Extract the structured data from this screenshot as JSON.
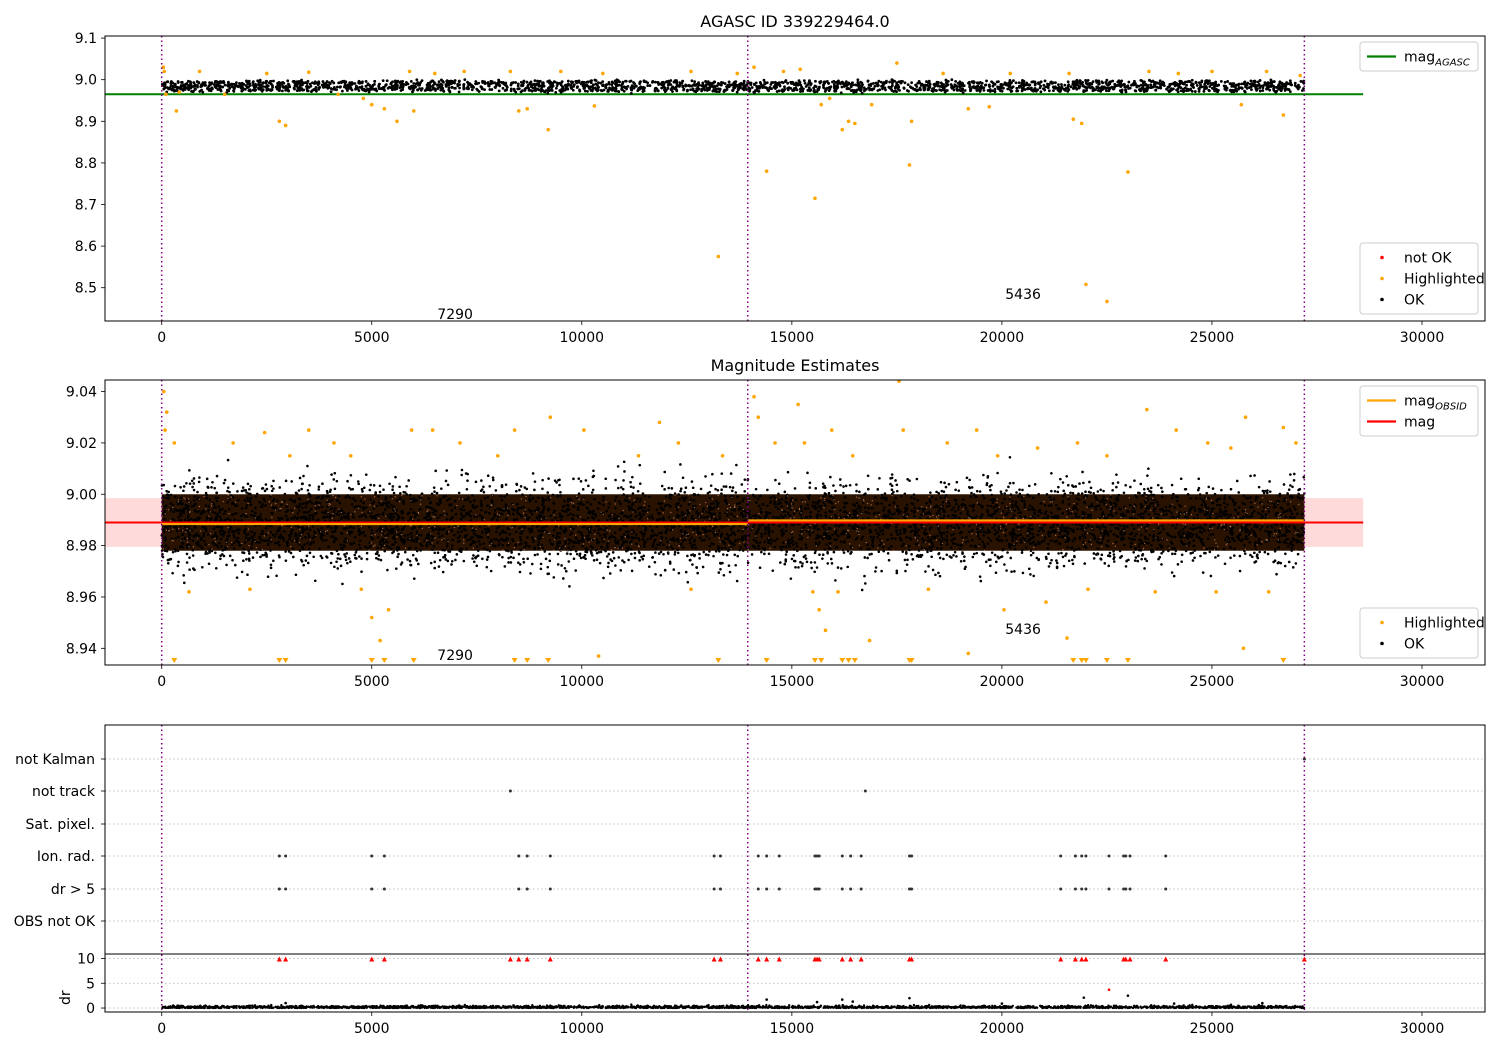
{
  "chart_data": [
    {
      "type": "scatter",
      "title": "AGASC ID 339229464.0",
      "xlim": [
        -1350,
        31500
      ],
      "ylim": [
        8.42,
        9.105
      ],
      "xticks": [
        0,
        5000,
        10000,
        15000,
        20000,
        25000,
        30000
      ],
      "yticks": [
        8.5,
        8.6,
        8.7,
        8.8,
        8.9,
        9.0,
        9.1
      ],
      "ytick_decimals": 1,
      "obs_boundaries": [
        0,
        13950,
        27200
      ],
      "obs_labels": [
        {
          "x": 6560,
          "y": 8.425,
          "text": "7290"
        },
        {
          "x": 20080,
          "y": 8.473,
          "text": "5436"
        }
      ],
      "reference_lines": [
        {
          "name": "mag_AGASC",
          "value": 8.965,
          "color": "#008000",
          "x_range": [
            -1350,
            28600
          ]
        }
      ],
      "ok_band": {
        "ymin": 8.972,
        "ymax": 8.997,
        "x_range": [
          0,
          27200
        ]
      },
      "highlighted": [
        {
          "x": 40,
          "y": 9.03
        },
        {
          "x": 60,
          "y": 9.02
        },
        {
          "x": 100,
          "y": 8.965
        },
        {
          "x": 350,
          "y": 8.925
        },
        {
          "x": 420,
          "y": 8.97
        },
        {
          "x": 900,
          "y": 9.02
        },
        {
          "x": 1500,
          "y": 8.965
        },
        {
          "x": 2500,
          "y": 9.015
        },
        {
          "x": 2800,
          "y": 8.9
        },
        {
          "x": 2950,
          "y": 8.89
        },
        {
          "x": 3500,
          "y": 9.018
        },
        {
          "x": 4200,
          "y": 8.965
        },
        {
          "x": 4800,
          "y": 8.955
        },
        {
          "x": 5000,
          "y": 8.94
        },
        {
          "x": 5300,
          "y": 8.93
        },
        {
          "x": 5600,
          "y": 8.9
        },
        {
          "x": 5900,
          "y": 9.02
        },
        {
          "x": 6000,
          "y": 8.925
        },
        {
          "x": 6500,
          "y": 9.015
        },
        {
          "x": 7200,
          "y": 9.02
        },
        {
          "x": 8300,
          "y": 9.02
        },
        {
          "x": 8500,
          "y": 8.925
        },
        {
          "x": 8700,
          "y": 8.93
        },
        {
          "x": 9200,
          "y": 8.88
        },
        {
          "x": 9500,
          "y": 9.02
        },
        {
          "x": 10300,
          "y": 8.937
        },
        {
          "x": 10500,
          "y": 9.015
        },
        {
          "x": 12600,
          "y": 9.02
        },
        {
          "x": 13250,
          "y": 8.575
        },
        {
          "x": 13700,
          "y": 9.015
        },
        {
          "x": 14100,
          "y": 9.03
        },
        {
          "x": 14400,
          "y": 8.78
        },
        {
          "x": 14800,
          "y": 9.02
        },
        {
          "x": 15200,
          "y": 9.025
        },
        {
          "x": 15550,
          "y": 8.715
        },
        {
          "x": 15700,
          "y": 8.94
        },
        {
          "x": 15900,
          "y": 8.955
        },
        {
          "x": 16200,
          "y": 8.88
        },
        {
          "x": 16350,
          "y": 8.9
        },
        {
          "x": 16500,
          "y": 8.895
        },
        {
          "x": 16900,
          "y": 8.94
        },
        {
          "x": 17500,
          "y": 9.04
        },
        {
          "x": 17800,
          "y": 8.795
        },
        {
          "x": 17850,
          "y": 8.9
        },
        {
          "x": 18600,
          "y": 9.015
        },
        {
          "x": 19200,
          "y": 8.93
        },
        {
          "x": 19700,
          "y": 8.935
        },
        {
          "x": 20200,
          "y": 9.015
        },
        {
          "x": 21600,
          "y": 9.015
        },
        {
          "x": 21700,
          "y": 8.905
        },
        {
          "x": 21900,
          "y": 8.895
        },
        {
          "x": 22000,
          "y": 8.508
        },
        {
          "x": 22500,
          "y": 8.467
        },
        {
          "x": 23000,
          "y": 8.778
        },
        {
          "x": 23500,
          "y": 9.02
        },
        {
          "x": 24200,
          "y": 9.015
        },
        {
          "x": 25000,
          "y": 9.02
        },
        {
          "x": 25700,
          "y": 8.94
        },
        {
          "x": 26300,
          "y": 9.02
        },
        {
          "x": 26700,
          "y": 8.915
        },
        {
          "x": 27100,
          "y": 9.01
        }
      ],
      "legends": [
        {
          "position": "top-right",
          "entries": [
            {
              "kind": "line",
              "color": "#008000",
              "text": "mag",
              "sub": "AGASC"
            }
          ]
        },
        {
          "position": "lower-right",
          "entries": [
            {
              "kind": "dot",
              "color": "#ff0000",
              "text": "not OK"
            },
            {
              "kind": "dot",
              "color": "#ffa500",
              "text": "Highlighted"
            },
            {
              "kind": "dot",
              "color": "#000000",
              "text": "OK"
            }
          ]
        }
      ]
    },
    {
      "type": "scatter",
      "title": "Magnitude Estimates",
      "xlim": [
        -1350,
        31500
      ],
      "ylim": [
        8.9335,
        9.0445
      ],
      "xticks": [
        0,
        5000,
        10000,
        15000,
        20000,
        25000,
        30000
      ],
      "yticks": [
        8.94,
        8.96,
        8.98,
        9.0,
        9.02,
        9.04
      ],
      "ytick_decimals": 2,
      "obs_boundaries": [
        0,
        13950,
        27200
      ],
      "obs_labels": [
        {
          "x": 6560,
          "y": 8.9355,
          "text": "7290"
        },
        {
          "x": 20080,
          "y": 8.9455,
          "text": "5436"
        }
      ],
      "error_band": {
        "ymin": 8.9795,
        "ymax": 8.9985,
        "x_range": [
          -1350,
          28600
        ],
        "color": "#ffdada"
      },
      "reference_lines": [
        {
          "name": "mag",
          "value": 8.989,
          "color": "#ff0000",
          "x_range": [
            -1350,
            28600
          ]
        }
      ],
      "obsid_mags": [
        {
          "x_range": [
            0,
            13950
          ],
          "value": 8.9884
        },
        {
          "x_range": [
            13950,
            27200
          ],
          "value": 8.9898
        }
      ],
      "ok_band": {
        "ymin": 8.978,
        "ymax": 9.0,
        "x_range": [
          0,
          27200
        ]
      },
      "ok_outer": {
        "ymin": 8.963,
        "ymax": 9.013
      },
      "highlighted": [
        {
          "x": 50,
          "y": 9.04
        },
        {
          "x": 80,
          "y": 9.025
        },
        {
          "x": 120,
          "y": 9.032
        },
        {
          "x": 300,
          "y": 9.02
        },
        {
          "x": 650,
          "y": 8.962
        },
        {
          "x": 1700,
          "y": 9.02
        },
        {
          "x": 2100,
          "y": 8.963
        },
        {
          "x": 2450,
          "y": 9.024
        },
        {
          "x": 3050,
          "y": 9.015
        },
        {
          "x": 3500,
          "y": 9.025
        },
        {
          "x": 4100,
          "y": 9.02
        },
        {
          "x": 4500,
          "y": 9.015
        },
        {
          "x": 4750,
          "y": 8.963
        },
        {
          "x": 5000,
          "y": 8.952
        },
        {
          "x": 5200,
          "y": 8.943
        },
        {
          "x": 5400,
          "y": 8.955
        },
        {
          "x": 5950,
          "y": 9.025
        },
        {
          "x": 6450,
          "y": 9.025
        },
        {
          "x": 7100,
          "y": 9.02
        },
        {
          "x": 8000,
          "y": 9.015
        },
        {
          "x": 8400,
          "y": 9.025
        },
        {
          "x": 9250,
          "y": 9.03
        },
        {
          "x": 10050,
          "y": 9.025
        },
        {
          "x": 10400,
          "y": 8.937
        },
        {
          "x": 11350,
          "y": 9.015
        },
        {
          "x": 11850,
          "y": 9.028
        },
        {
          "x": 12300,
          "y": 9.02
        },
        {
          "x": 12600,
          "y": 8.963
        },
        {
          "x": 13350,
          "y": 9.015
        },
        {
          "x": 14100,
          "y": 9.038
        },
        {
          "x": 14200,
          "y": 9.03
        },
        {
          "x": 14600,
          "y": 9.02
        },
        {
          "x": 15150,
          "y": 9.035
        },
        {
          "x": 15300,
          "y": 9.02
        },
        {
          "x": 15500,
          "y": 8.962
        },
        {
          "x": 15650,
          "y": 8.955
        },
        {
          "x": 15800,
          "y": 8.947
        },
        {
          "x": 15950,
          "y": 9.025
        },
        {
          "x": 16100,
          "y": 8.962
        },
        {
          "x": 16450,
          "y": 9.015
        },
        {
          "x": 16850,
          "y": 8.943
        },
        {
          "x": 17550,
          "y": 9.044
        },
        {
          "x": 17650,
          "y": 9.025
        },
        {
          "x": 18250,
          "y": 8.963
        },
        {
          "x": 18700,
          "y": 9.02
        },
        {
          "x": 19200,
          "y": 8.938
        },
        {
          "x": 19400,
          "y": 9.025
        },
        {
          "x": 19900,
          "y": 9.015
        },
        {
          "x": 20050,
          "y": 8.955
        },
        {
          "x": 20850,
          "y": 9.018
        },
        {
          "x": 21050,
          "y": 8.958
        },
        {
          "x": 21550,
          "y": 8.944
        },
        {
          "x": 21800,
          "y": 9.02
        },
        {
          "x": 22050,
          "y": 8.963
        },
        {
          "x": 22500,
          "y": 9.015
        },
        {
          "x": 23450,
          "y": 9.033
        },
        {
          "x": 23650,
          "y": 8.962
        },
        {
          "x": 24150,
          "y": 9.025
        },
        {
          "x": 24900,
          "y": 9.02
        },
        {
          "x": 25100,
          "y": 8.962
        },
        {
          "x": 25450,
          "y": 9.018
        },
        {
          "x": 25750,
          "y": 8.94
        },
        {
          "x": 25800,
          "y": 9.03
        },
        {
          "x": 26350,
          "y": 8.962
        },
        {
          "x": 26700,
          "y": 9.026
        },
        {
          "x": 27000,
          "y": 9.02
        }
      ],
      "offscale_low": [
        300,
        2800,
        2950,
        5000,
        5300,
        6000,
        8400,
        8700,
        9200,
        13250,
        14400,
        15550,
        15700,
        16200,
        16350,
        16500,
        17800,
        17850,
        21700,
        21900,
        22000,
        22500,
        23000,
        26700
      ],
      "legends": [
        {
          "position": "top-right",
          "entries": [
            {
              "kind": "line",
              "color": "#ffa500",
              "text": "mag",
              "sub": "OBSID"
            },
            {
              "kind": "line",
              "color": "#ff0000",
              "text": "mag"
            }
          ]
        },
        {
          "position": "lower-right",
          "entries": [
            {
              "kind": "dot",
              "color": "#ffa500",
              "text": "Highlighted"
            },
            {
              "kind": "dot",
              "color": "#000000",
              "text": "OK"
            }
          ]
        }
      ]
    },
    {
      "type": "scatter",
      "title": "",
      "xlim": [
        -1350,
        31500
      ],
      "xticks": [
        0,
        5000,
        10000,
        15000,
        20000,
        25000,
        30000
      ],
      "obs_boundaries": [
        0,
        13950,
        27200
      ],
      "flag_rows": [
        "not Kalman",
        "not track",
        "Sat. pixel.",
        "Ion. rad.",
        "dr > 5",
        "OBS not OK"
      ],
      "flags": {
        "not Kalman": [
          27200
        ],
        "not track": [
          8300,
          16750
        ],
        "Sat. pixel.": [],
        "Ion. rad.": [
          2800,
          2950,
          5000,
          5300,
          8500,
          8700,
          9250,
          13150,
          13300,
          14200,
          14400,
          14700,
          15550,
          15600,
          15650,
          16200,
          16400,
          16650,
          17800,
          17850,
          21400,
          21750,
          21900,
          22000,
          22550,
          22900,
          22950,
          23050,
          23900
        ],
        "dr > 5": [
          2800,
          2950,
          5000,
          5300,
          8500,
          8700,
          9250,
          13150,
          13300,
          14200,
          14400,
          14700,
          15550,
          15600,
          15650,
          16200,
          16400,
          16650,
          17800,
          17850,
          21400,
          21750,
          21900,
          22000,
          22550,
          22900,
          22950,
          23050,
          23900
        ],
        "OBS not OK": []
      },
      "dr": {
        "ylabel": "dr",
        "yticks": [
          0,
          5,
          10
        ],
        "ylim": [
          -0.8,
          10.5
        ],
        "clip_markers": [
          2800,
          2950,
          5000,
          5300,
          8300,
          8500,
          8700,
          9250,
          13150,
          13300,
          14200,
          14400,
          14700,
          15550,
          15600,
          15650,
          16200,
          16400,
          16650,
          17800,
          17850,
          21400,
          21750,
          21900,
          22000,
          22900,
          22950,
          23050,
          23900,
          27200
        ],
        "outliers": [
          {
            "x": 2950,
            "y": 1.0
          },
          {
            "x": 14400,
            "y": 1.7
          },
          {
            "x": 15600,
            "y": 1.2
          },
          {
            "x": 16200,
            "y": 1.7
          },
          {
            "x": 16450,
            "y": 1.3
          },
          {
            "x": 17800,
            "y": 2.0
          },
          {
            "x": 20000,
            "y": 0.9
          },
          {
            "x": 21950,
            "y": 2.1
          },
          {
            "x": 22550,
            "y": 3.7
          },
          {
            "x": 23000,
            "y": 2.5
          },
          {
            "x": 24100,
            "y": 0.9
          },
          {
            "x": 26200,
            "y": 1.0
          }
        ]
      }
    }
  ]
}
